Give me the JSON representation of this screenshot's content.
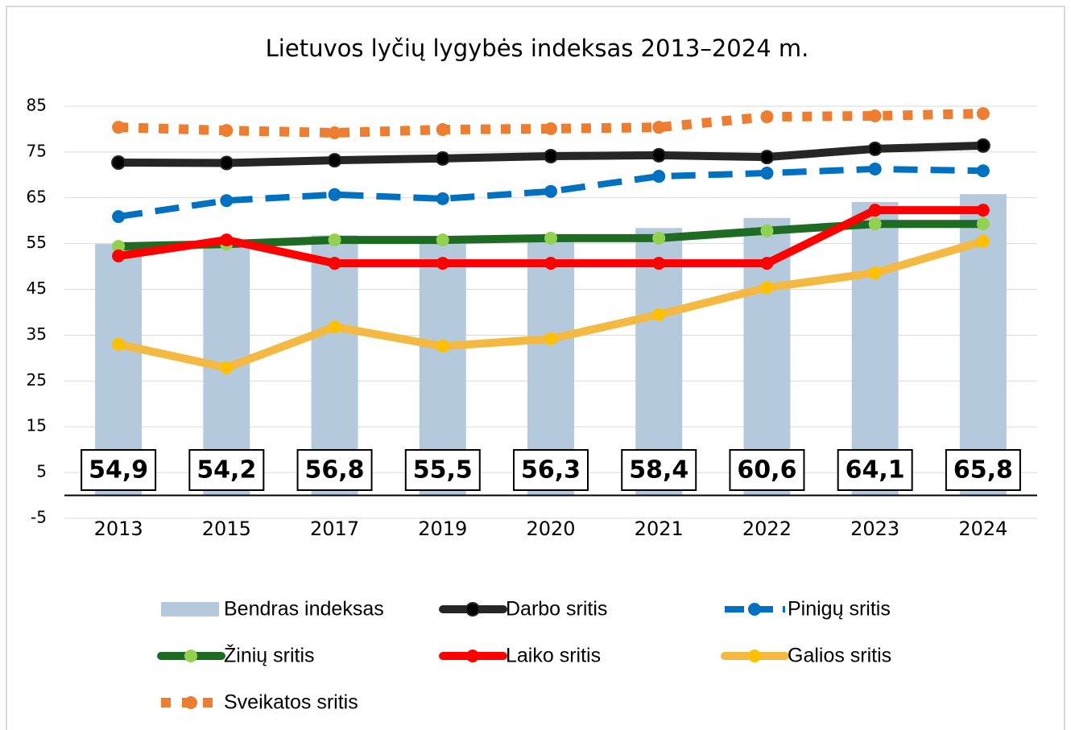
{
  "chart_data": {
    "type": "combo",
    "title": "Lietuvos lyčių lygybės indeksas 2013–2024 m.",
    "categories": [
      "2013",
      "2015",
      "2017",
      "2019",
      "2020",
      "2021",
      "2022",
      "2023",
      "2024"
    ],
    "ylim": [
      -5,
      85
    ],
    "yticks": [
      -5,
      5,
      15,
      25,
      35,
      45,
      55,
      65,
      75,
      85
    ],
    "grid": true,
    "legend": "bottom",
    "series": [
      {
        "name": "Bendras indeksas",
        "type": "bar",
        "color": "#b4c9dc",
        "values": [
          54.9,
          54.2,
          56.8,
          55.5,
          56.3,
          58.4,
          60.6,
          64.1,
          65.8
        ],
        "value_labels": [
          "54,9",
          "54,2",
          "56,8",
          "55,5",
          "56,3",
          "58,4",
          "60,6",
          "64,1",
          "65,8"
        ]
      },
      {
        "name": "Darbo sritis",
        "type": "line",
        "line_style": "solid",
        "color": "#262626",
        "marker_color": "#000000",
        "values": [
          72.7,
          72.6,
          73.2,
          73.6,
          74.1,
          74.3,
          73.9,
          75.7,
          76.4
        ]
      },
      {
        "name": "Pinigų sritis",
        "type": "line",
        "line_style": "dashed",
        "color": "#0070c0",
        "marker_color": "#0070c0",
        "values": [
          60.9,
          64.4,
          65.7,
          64.8,
          66.4,
          69.7,
          70.4,
          71.3,
          70.9
        ]
      },
      {
        "name": "Žinių sritis",
        "type": "line",
        "line_style": "solid",
        "color": "#1e6b23",
        "marker_color": "#92d050",
        "values": [
          54.4,
          54.9,
          55.8,
          55.8,
          56.2,
          56.2,
          57.8,
          59.3,
          59.3
        ]
      },
      {
        "name": "Laiko sritis",
        "type": "line",
        "line_style": "solid",
        "color": "#ff0000",
        "marker_color": "#ff0000",
        "values": [
          52.3,
          55.8,
          50.7,
          50.7,
          50.7,
          50.7,
          50.7,
          62.3,
          62.3
        ]
      },
      {
        "name": "Galios sritis",
        "type": "line",
        "line_style": "solid",
        "color": "#f4b942",
        "marker_color": "#ffc000",
        "values": [
          33.0,
          27.9,
          36.8,
          32.6,
          34.2,
          39.5,
          45.4,
          48.6,
          55.5
        ]
      },
      {
        "name": "Sveikatos sritis",
        "type": "line",
        "line_style": "dotted",
        "color": "#ed7d31",
        "marker_color": "#ed7d31",
        "values": [
          80.4,
          79.7,
          79.2,
          79.9,
          80.1,
          80.4,
          82.7,
          82.9,
          83.4
        ]
      }
    ]
  }
}
